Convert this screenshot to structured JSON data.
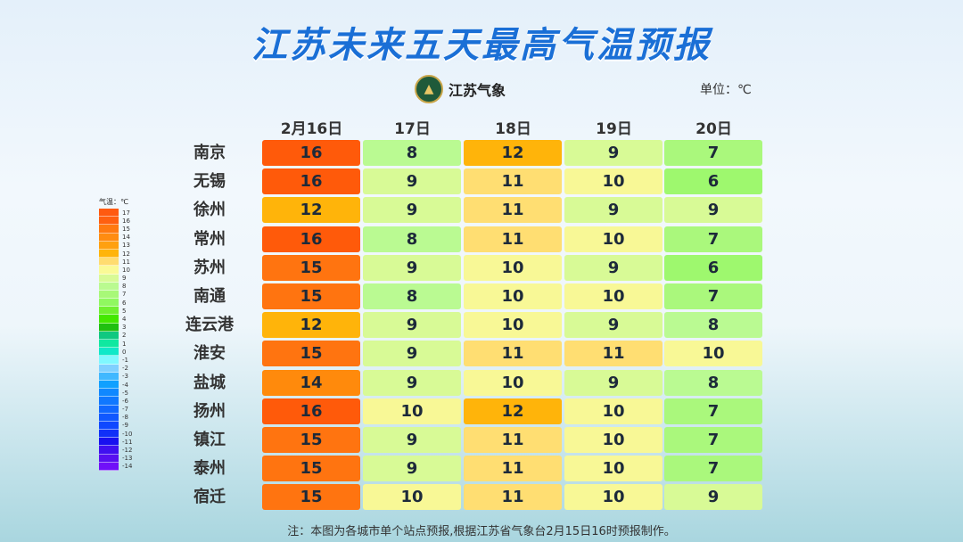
{
  "title": "江苏未来五天最高气温预报",
  "logo_text": "江苏气象",
  "unit": "单位：℃",
  "columns": [
    "2月16日",
    "17日",
    "18日",
    "19日",
    "20日"
  ],
  "rows": [
    {
      "city": "南京",
      "values": [
        16,
        8,
        12,
        9,
        7
      ]
    },
    {
      "city": "无锡",
      "values": [
        16,
        9,
        11,
        10,
        6
      ]
    },
    {
      "city": "徐州",
      "values": [
        12,
        9,
        11,
        9,
        9
      ]
    },
    {
      "city": "常州",
      "values": [
        16,
        8,
        11,
        10,
        7
      ]
    },
    {
      "city": "苏州",
      "values": [
        15,
        9,
        10,
        9,
        6
      ]
    },
    {
      "city": "南通",
      "values": [
        15,
        8,
        10,
        10,
        7
      ]
    },
    {
      "city": "连云港",
      "values": [
        12,
        9,
        10,
        9,
        8
      ]
    },
    {
      "city": "淮安",
      "values": [
        15,
        9,
        11,
        11,
        10
      ]
    },
    {
      "city": "盐城",
      "values": [
        14,
        9,
        10,
        9,
        8
      ]
    },
    {
      "city": "扬州",
      "values": [
        16,
        10,
        12,
        10,
        7
      ]
    },
    {
      "city": "镇江",
      "values": [
        15,
        9,
        11,
        10,
        7
      ]
    },
    {
      "city": "泰州",
      "values": [
        15,
        9,
        11,
        10,
        7
      ]
    },
    {
      "city": "宿迁",
      "values": [
        15,
        10,
        11,
        10,
        9
      ]
    }
  ],
  "legend": {
    "title": "气温：℃",
    "items": [
      {
        "label": "17",
        "color": "#ff5a10"
      },
      {
        "label": "16",
        "color": "#ff6010"
      },
      {
        "label": "15",
        "color": "#ff7a10"
      },
      {
        "label": "14",
        "color": "#ff8c10"
      },
      {
        "label": "13",
        "color": "#ffa010"
      },
      {
        "label": "12",
        "color": "#ffb40a"
      },
      {
        "label": "11",
        "color": "#ffdc70"
      },
      {
        "label": "10",
        "color": "#fafa96"
      },
      {
        "label": "9",
        "color": "#d8fa96"
      },
      {
        "label": "8",
        "color": "#bafa90"
      },
      {
        "label": "7",
        "color": "#a8f878"
      },
      {
        "label": "6",
        "color": "#90f860"
      },
      {
        "label": "5",
        "color": "#70f030"
      },
      {
        "label": "4",
        "color": "#44e800"
      },
      {
        "label": "3",
        "color": "#20c010"
      },
      {
        "label": "2",
        "color": "#10c880"
      },
      {
        "label": "1",
        "color": "#10e8a0"
      },
      {
        "label": "0",
        "color": "#10e8c8"
      },
      {
        "label": "-1",
        "color": "#80f8ff"
      },
      {
        "label": "-2",
        "color": "#80d0ff"
      },
      {
        "label": "-3",
        "color": "#40b8ff"
      },
      {
        "label": "-4",
        "color": "#10a0ff"
      },
      {
        "label": "-5",
        "color": "#1088ff"
      },
      {
        "label": "-6",
        "color": "#1078ff"
      },
      {
        "label": "-7",
        "color": "#1068ff"
      },
      {
        "label": "-8",
        "color": "#1058ff"
      },
      {
        "label": "-9",
        "color": "#1048ff"
      },
      {
        "label": "-10",
        "color": "#1030f8"
      },
      {
        "label": "-11",
        "color": "#1810f0"
      },
      {
        "label": "-12",
        "color": "#4010f0"
      },
      {
        "label": "-13",
        "color": "#5810f0"
      },
      {
        "label": "-14",
        "color": "#7010f8"
      }
    ]
  },
  "cell_colors": {
    "6": "#9ef86e",
    "7": "#aaf87c",
    "8": "#bafa92",
    "9": "#d8fa96",
    "10": "#f8f896",
    "11": "#ffde72",
    "12": "#ffb40a",
    "14": "#ff8a0c",
    "15": "#ff7410",
    "16": "#ff5a0a"
  },
  "footnote": "注：本图为各城市单个站点预报,根据江苏省气象台2月15日16时预报制作。"
}
